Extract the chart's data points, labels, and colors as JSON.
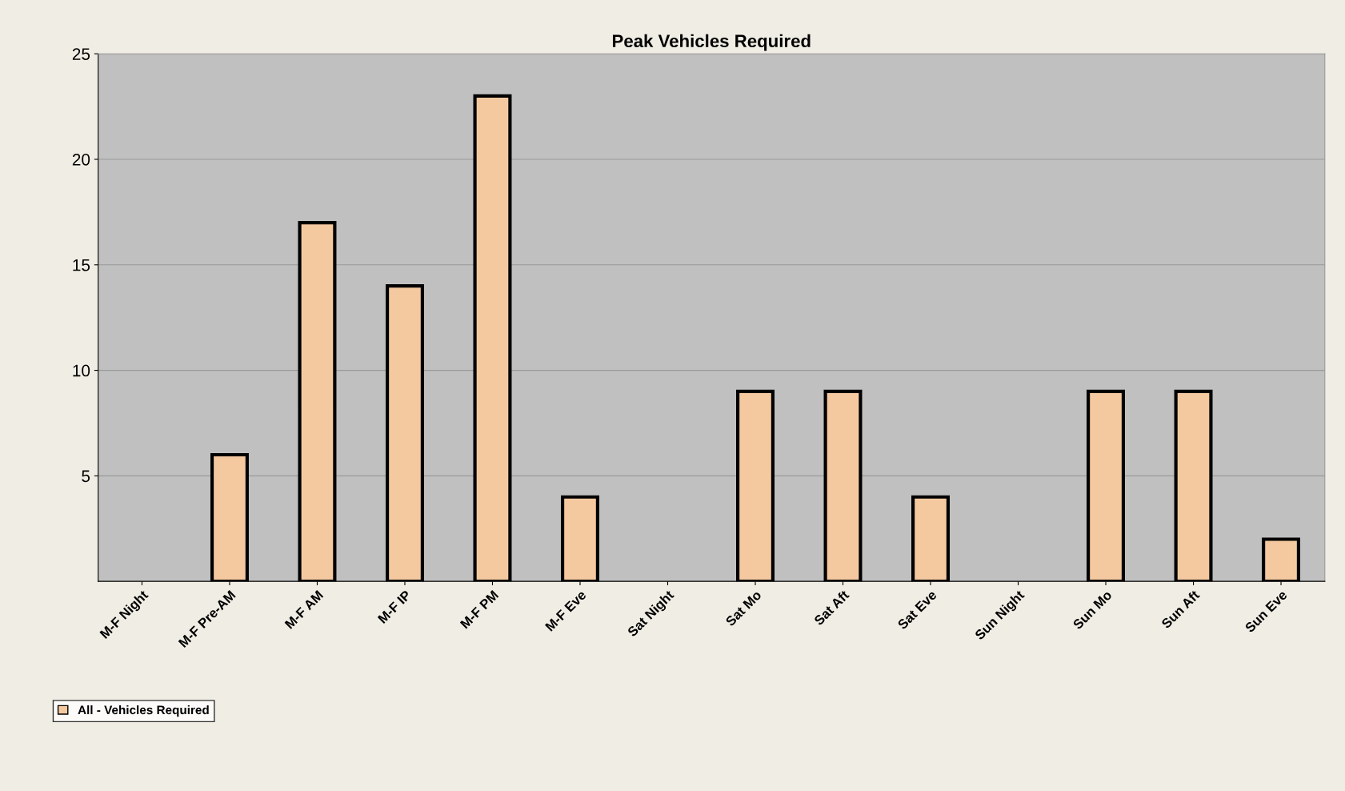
{
  "chart_data": {
    "type": "bar",
    "title": "Peak Vehicles Required",
    "categories": [
      "M-F Night",
      "M-F Pre-AM",
      "M-F AM",
      "M-F IP",
      "M-F PM",
      "M-F Eve",
      "Sat Night",
      "Sat Mo",
      "Sat Aft",
      "Sat Eve",
      "Sun Night",
      "Sun Mo",
      "Sun Aft",
      "Sun Eve"
    ],
    "series": [
      {
        "name": "All - Vehicles Required",
        "color": "#f5c9a0",
        "values": [
          0,
          6,
          17,
          14,
          23,
          4,
          0,
          9,
          9,
          4,
          0,
          9,
          9,
          2
        ]
      }
    ],
    "ylim": [
      0,
      25
    ],
    "yticks": [
      5,
      10,
      15,
      20,
      25
    ],
    "grid": "y",
    "legend": "bottom left"
  }
}
